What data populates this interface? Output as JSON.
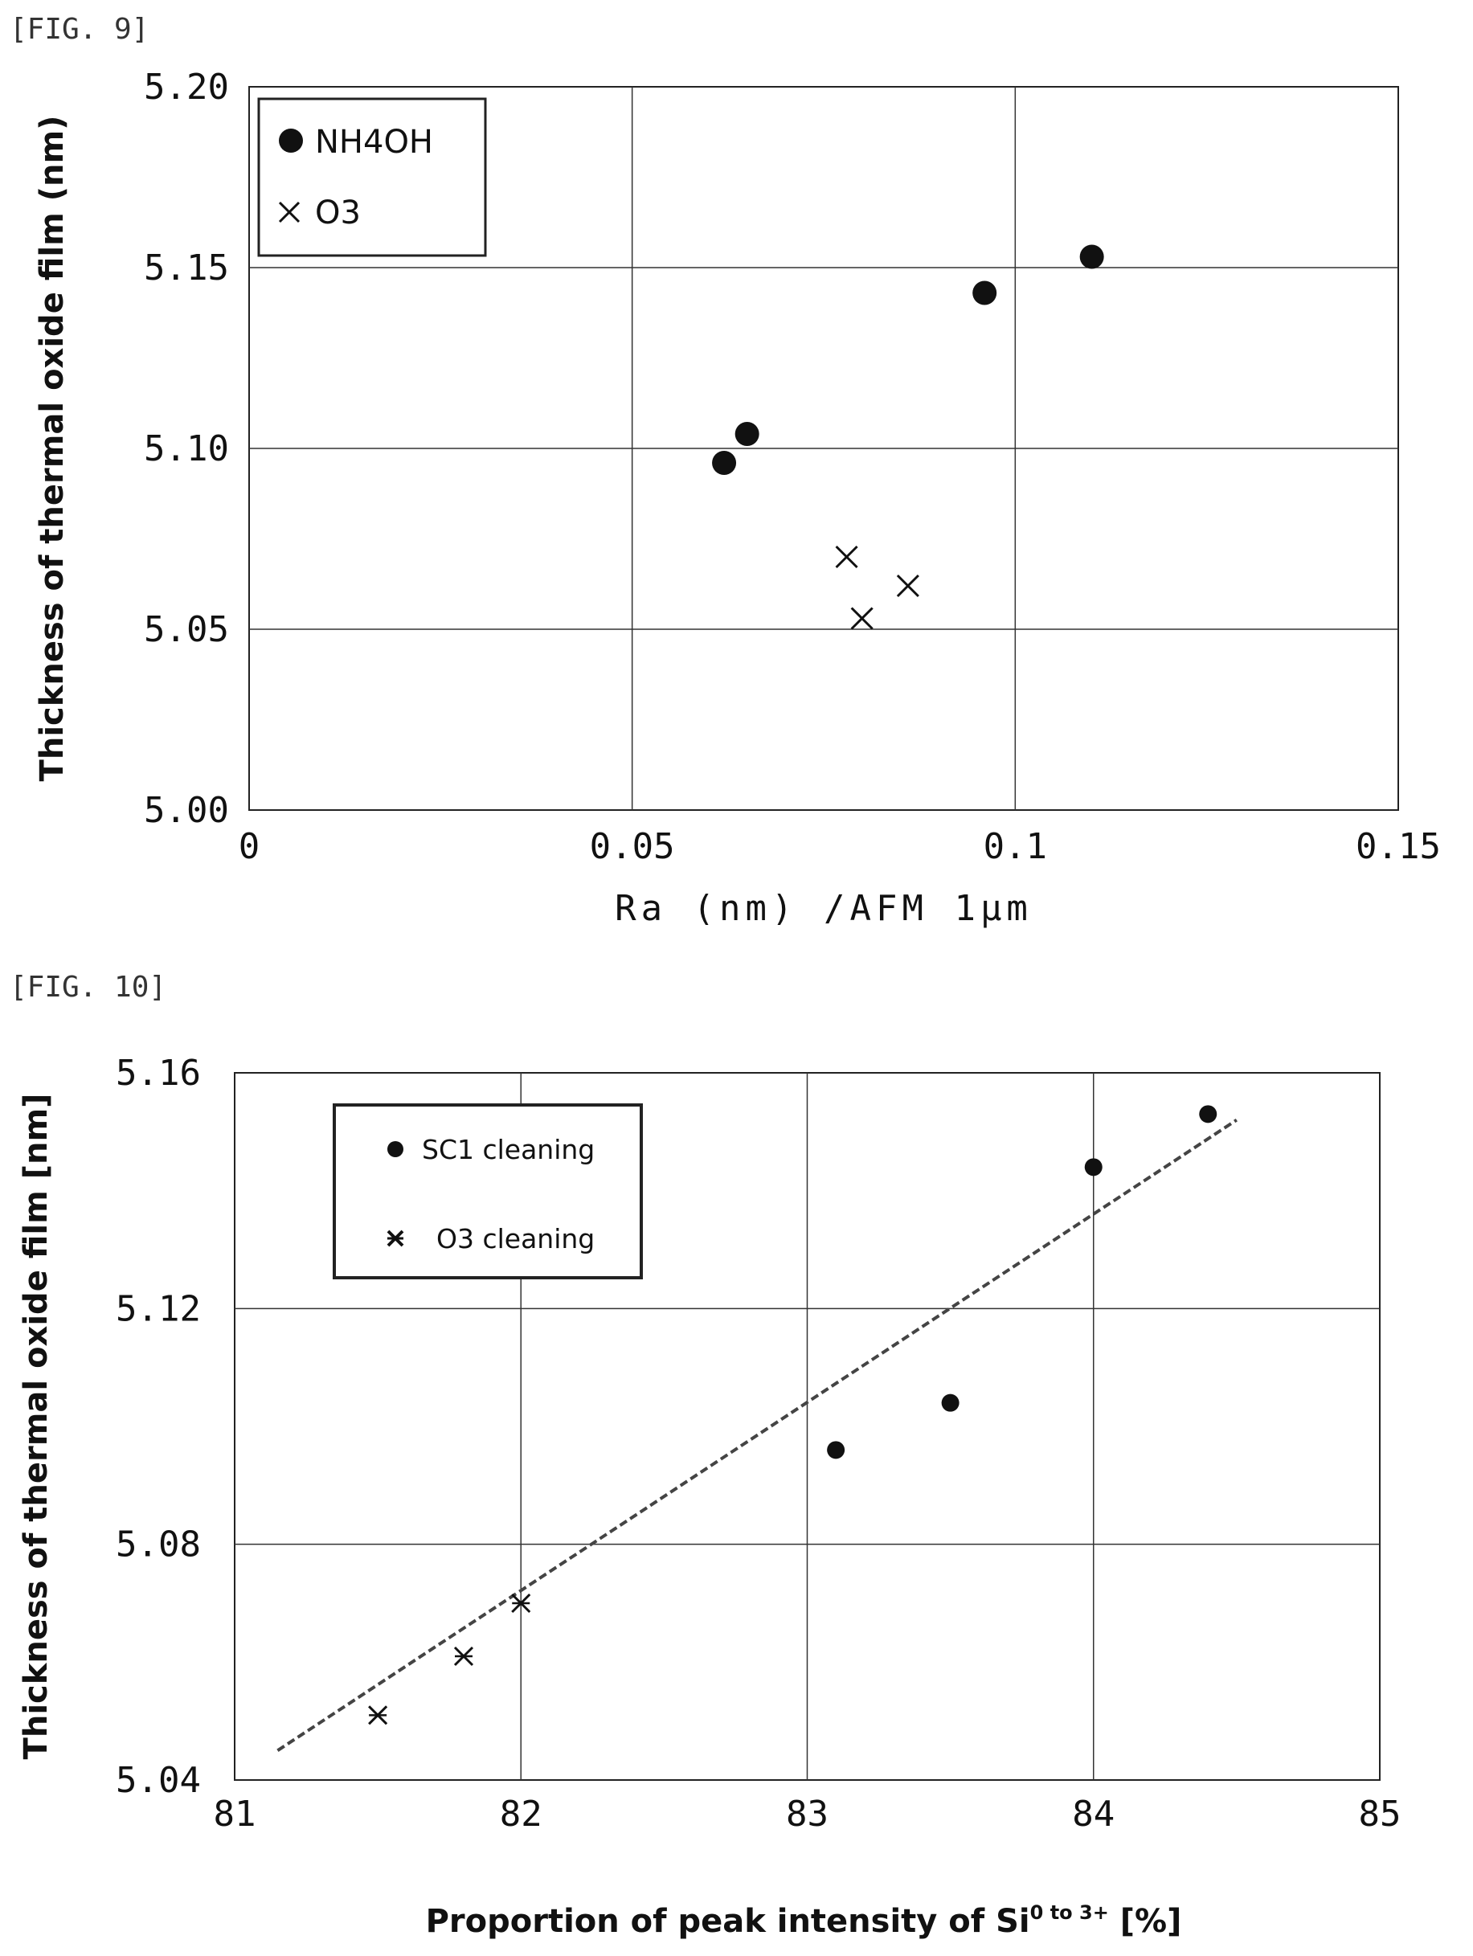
{
  "chart_data": [
    {
      "figure_label": "[FIG. 9]",
      "type": "scatter",
      "xlabel": "Ra (nm) ∕AFM 1μm",
      "ylabel": "Thickness of thermal oxide film (nm)",
      "xlim": [
        0,
        0.15
      ],
      "ylim": [
        5.0,
        5.2
      ],
      "x_ticks": [
        "0",
        "0.05",
        "0.1",
        "0.15"
      ],
      "y_ticks": [
        "5.00",
        "5.05",
        "5.10",
        "5.15",
        "5.20"
      ],
      "grid": true,
      "legend_position": "top-left",
      "series": [
        {
          "name": "NH4OH",
          "marker": "filled-circle",
          "points": [
            {
              "x": 0.062,
              "y": 5.096
            },
            {
              "x": 0.065,
              "y": 5.104
            },
            {
              "x": 0.096,
              "y": 5.143
            },
            {
              "x": 0.11,
              "y": 5.153
            }
          ]
        },
        {
          "name": "O3",
          "marker": "cross",
          "points": [
            {
              "x": 0.078,
              "y": 5.07
            },
            {
              "x": 0.08,
              "y": 5.053
            },
            {
              "x": 0.086,
              "y": 5.062
            }
          ]
        }
      ]
    },
    {
      "figure_label": "[FIG. 10]",
      "type": "scatter",
      "xlabel": "Proportion of peak intensity of Si",
      "xlabel_sup": "0 to 3+",
      "xlabel_suffix": " [%]",
      "ylabel": "Thickness of thermal oxide film [nm]",
      "xlim": [
        81,
        85
      ],
      "ylim": [
        5.04,
        5.16
      ],
      "x_ticks": [
        "81",
        "82",
        "83",
        "84",
        "85"
      ],
      "y_ticks": [
        "5.04",
        "5.08",
        "5.12",
        "5.16"
      ],
      "grid": true,
      "legend_position": "top-left",
      "trendline": {
        "x": [
          81.15,
          84.5
        ],
        "y": [
          5.045,
          5.152
        ],
        "style": "dashed"
      },
      "series": [
        {
          "name": "SC1 cleaning",
          "marker": "filled-circle",
          "points": [
            {
              "x": 83.1,
              "y": 5.096
            },
            {
              "x": 83.5,
              "y": 5.104
            },
            {
              "x": 84.0,
              "y": 5.144
            },
            {
              "x": 84.4,
              "y": 5.153
            }
          ]
        },
        {
          "name": "O3 cleaning",
          "marker": "asterisk",
          "points": [
            {
              "x": 81.5,
              "y": 5.051
            },
            {
              "x": 81.8,
              "y": 5.061
            },
            {
              "x": 82.0,
              "y": 5.07
            }
          ]
        }
      ]
    }
  ]
}
